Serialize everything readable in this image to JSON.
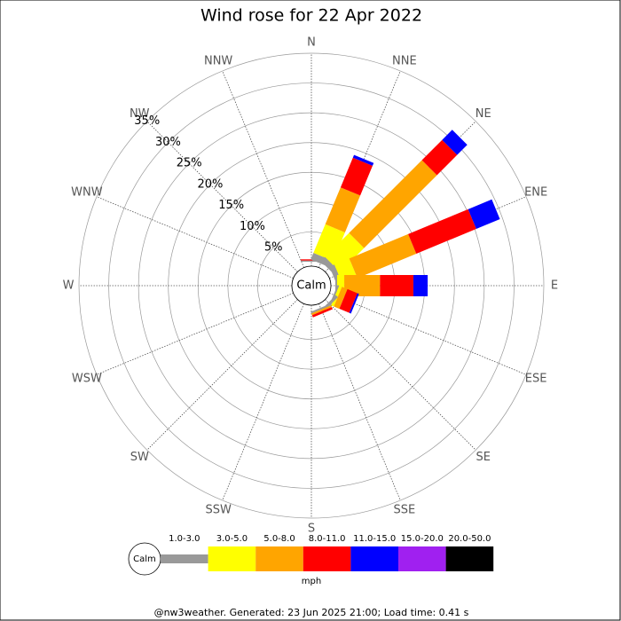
{
  "chart_data": {
    "type": "windrose",
    "title": "Wind rose for 22 Apr 2022",
    "categories": [
      "N",
      "NNE",
      "NE",
      "ENE",
      "E",
      "ESE",
      "SE",
      "SSE",
      "S",
      "SSW",
      "SW",
      "WSW",
      "W",
      "WNW",
      "NW",
      "NNW"
    ],
    "calm_label": "Calm",
    "unit_label": "mph",
    "footer": "@nw3weather. Generated: 23 Jun 2025 21:00; Load time: 0.41 s",
    "rlim": [
      0,
      35
    ],
    "rticks": [
      {
        "value": 5,
        "label": "5%"
      },
      {
        "value": 10,
        "label": "10%"
      },
      {
        "value": 15,
        "label": "15%"
      },
      {
        "value": 20,
        "label": "20%"
      },
      {
        "value": 25,
        "label": "25%"
      },
      {
        "value": 30,
        "label": "30%"
      },
      {
        "value": 35,
        "label": "35%"
      }
    ],
    "series": [
      {
        "name": "1.0-3.0",
        "color": "#999999",
        "values": [
          0.2,
          1.2,
          1,
          0.9,
          0.3,
          0.3,
          0.5,
          0.3,
          0,
          0,
          0,
          0,
          0,
          0,
          0,
          0
        ]
      },
      {
        "name": "3.0-5.0",
        "color": "#ffff00",
        "values": [
          0,
          5.2,
          5.7,
          2.7,
          1.2,
          0.5,
          0,
          0,
          0,
          0,
          0,
          0,
          0,
          0,
          0,
          0
        ]
      },
      {
        "name": "5.0-8.0",
        "color": "#ffa500",
        "values": [
          0,
          6.7,
          17.3,
          10.7,
          6,
          1,
          0,
          0.3,
          0,
          0,
          0,
          0,
          0,
          0,
          0,
          0
        ]
      },
      {
        "name": "8.0-11.0",
        "color": "#ff0000",
        "values": [
          0.2,
          5.4,
          4.8,
          10.9,
          5.6,
          1.8,
          0,
          0.4,
          0,
          0,
          0,
          0,
          0,
          0,
          0,
          0
        ]
      },
      {
        "name": "11.0-15.0",
        "color": "#0000ff",
        "values": [
          0,
          0.5,
          2.4,
          4.3,
          2.4,
          0.3,
          0,
          0,
          0,
          0,
          0,
          0,
          0,
          0,
          0,
          0
        ]
      },
      {
        "name": "15.0-20.0",
        "color": "#a020f0",
        "values": [
          0,
          0,
          0,
          0,
          0,
          0,
          0,
          0,
          0,
          0,
          0,
          0,
          0,
          0,
          0,
          0
        ]
      },
      {
        "name": "20.0-50.0",
        "color": "#000000",
        "values": [
          0,
          0,
          0,
          0,
          0,
          0,
          0,
          0,
          0,
          0,
          0,
          0,
          0,
          0,
          0,
          0
        ]
      }
    ]
  }
}
